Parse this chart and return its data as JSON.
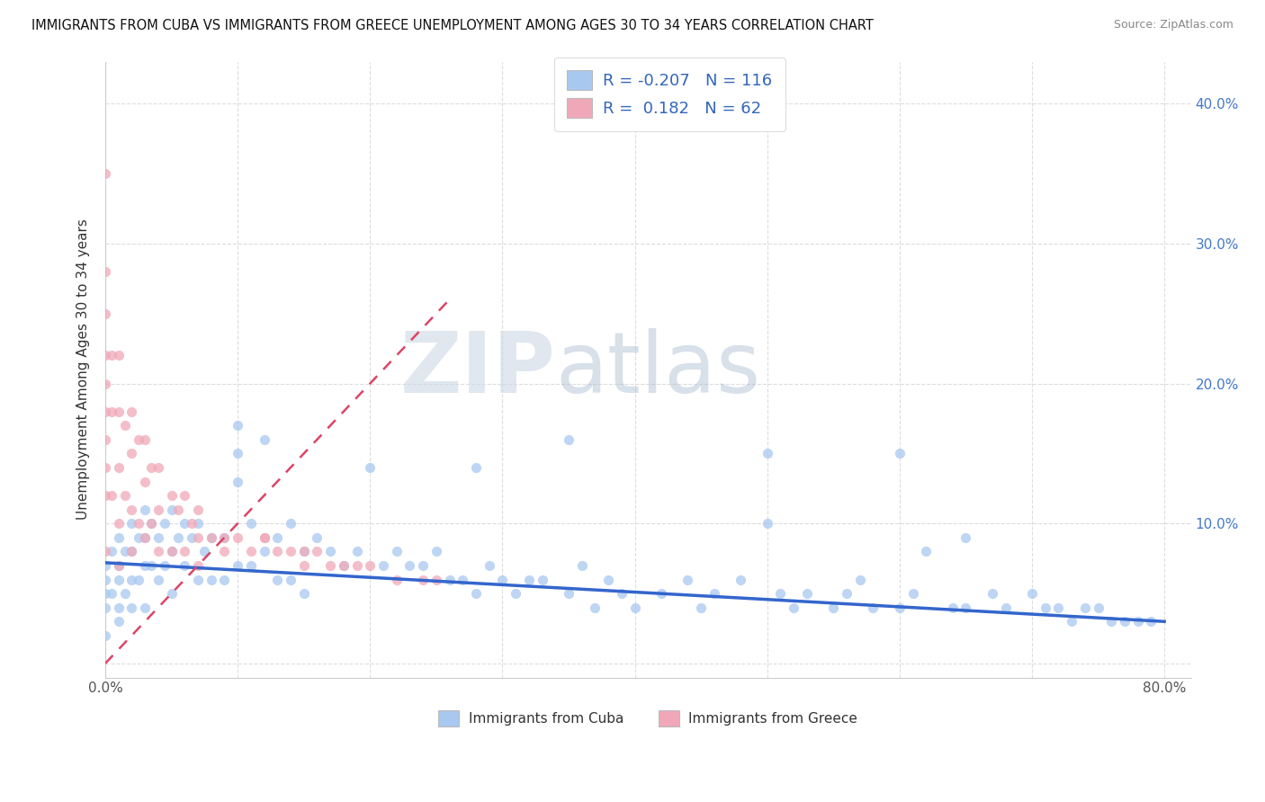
{
  "title": "IMMIGRANTS FROM CUBA VS IMMIGRANTS FROM GREECE UNEMPLOYMENT AMONG AGES 30 TO 34 YEARS CORRELATION CHART",
  "source": "Source: ZipAtlas.com",
  "ylabel": "Unemployment Among Ages 30 to 34 years",
  "xlim": [
    0.0,
    0.82
  ],
  "ylim": [
    -0.01,
    0.43
  ],
  "xticks": [
    0.0,
    0.1,
    0.2,
    0.3,
    0.4,
    0.5,
    0.6,
    0.7,
    0.8
  ],
  "xticklabels": [
    "0.0%",
    "",
    "",
    "",
    "",
    "",
    "",
    "",
    "80.0%"
  ],
  "yticks": [
    0.0,
    0.1,
    0.2,
    0.3,
    0.4
  ],
  "yticklabels": [
    "",
    "10.0%",
    "20.0%",
    "30.0%",
    "40.0%"
  ],
  "cuba_R": -0.207,
  "cuba_N": 116,
  "greece_R": 0.182,
  "greece_N": 62,
  "cuba_color": "#a8c8f0",
  "greece_color": "#f0a8b8",
  "cuba_line_color": "#3366cc",
  "greece_line_color": "#dd4466",
  "watermark_zip": "ZIP",
  "watermark_atlas": "atlas",
  "background_color": "#ffffff",
  "grid_color": "#dddddd",
  "cuba_scatter_x": [
    0.0,
    0.0,
    0.0,
    0.0,
    0.0,
    0.005,
    0.005,
    0.01,
    0.01,
    0.01,
    0.01,
    0.01,
    0.015,
    0.015,
    0.02,
    0.02,
    0.02,
    0.02,
    0.025,
    0.025,
    0.03,
    0.03,
    0.03,
    0.03,
    0.035,
    0.035,
    0.04,
    0.04,
    0.045,
    0.045,
    0.05,
    0.05,
    0.05,
    0.055,
    0.06,
    0.06,
    0.065,
    0.07,
    0.07,
    0.075,
    0.08,
    0.08,
    0.09,
    0.09,
    0.1,
    0.1,
    0.1,
    0.11,
    0.11,
    0.12,
    0.12,
    0.13,
    0.13,
    0.14,
    0.14,
    0.15,
    0.15,
    0.16,
    0.17,
    0.18,
    0.19,
    0.2,
    0.21,
    0.22,
    0.23,
    0.24,
    0.25,
    0.26,
    0.27,
    0.28,
    0.29,
    0.3,
    0.31,
    0.32,
    0.33,
    0.35,
    0.36,
    0.37,
    0.38,
    0.39,
    0.4,
    0.42,
    0.44,
    0.45,
    0.46,
    0.48,
    0.5,
    0.51,
    0.52,
    0.53,
    0.55,
    0.56,
    0.57,
    0.58,
    0.6,
    0.61,
    0.62,
    0.64,
    0.65,
    0.67,
    0.68,
    0.7,
    0.71,
    0.72,
    0.73,
    0.74,
    0.75,
    0.76,
    0.77,
    0.78,
    0.79,
    0.1,
    0.28,
    0.35,
    0.5,
    0.6,
    0.65
  ],
  "cuba_scatter_y": [
    0.07,
    0.06,
    0.05,
    0.04,
    0.02,
    0.08,
    0.05,
    0.09,
    0.07,
    0.06,
    0.04,
    0.03,
    0.08,
    0.05,
    0.1,
    0.08,
    0.06,
    0.04,
    0.09,
    0.06,
    0.11,
    0.09,
    0.07,
    0.04,
    0.1,
    0.07,
    0.09,
    0.06,
    0.1,
    0.07,
    0.11,
    0.08,
    0.05,
    0.09,
    0.1,
    0.07,
    0.09,
    0.1,
    0.06,
    0.08,
    0.09,
    0.06,
    0.09,
    0.06,
    0.17,
    0.13,
    0.07,
    0.1,
    0.07,
    0.16,
    0.08,
    0.09,
    0.06,
    0.1,
    0.06,
    0.08,
    0.05,
    0.09,
    0.08,
    0.07,
    0.08,
    0.14,
    0.07,
    0.08,
    0.07,
    0.07,
    0.08,
    0.06,
    0.06,
    0.05,
    0.07,
    0.06,
    0.05,
    0.06,
    0.06,
    0.05,
    0.07,
    0.04,
    0.06,
    0.05,
    0.04,
    0.05,
    0.06,
    0.04,
    0.05,
    0.06,
    0.1,
    0.05,
    0.04,
    0.05,
    0.04,
    0.05,
    0.06,
    0.04,
    0.04,
    0.05,
    0.08,
    0.04,
    0.04,
    0.05,
    0.04,
    0.05,
    0.04,
    0.04,
    0.03,
    0.04,
    0.04,
    0.03,
    0.03,
    0.03,
    0.03,
    0.15,
    0.14,
    0.16,
    0.15,
    0.15,
    0.09
  ],
  "greece_scatter_x": [
    0.0,
    0.0,
    0.0,
    0.0,
    0.0,
    0.0,
    0.0,
    0.0,
    0.0,
    0.0,
    0.005,
    0.005,
    0.005,
    0.01,
    0.01,
    0.01,
    0.01,
    0.01,
    0.015,
    0.015,
    0.02,
    0.02,
    0.02,
    0.02,
    0.025,
    0.025,
    0.03,
    0.03,
    0.03,
    0.035,
    0.035,
    0.04,
    0.04,
    0.04,
    0.05,
    0.05,
    0.055,
    0.06,
    0.06,
    0.065,
    0.07,
    0.07,
    0.08,
    0.09,
    0.1,
    0.11,
    0.12,
    0.13,
    0.14,
    0.15,
    0.16,
    0.17,
    0.18,
    0.19,
    0.2,
    0.22,
    0.24,
    0.25,
    0.07,
    0.09,
    0.12,
    0.15
  ],
  "greece_scatter_y": [
    0.35,
    0.28,
    0.25,
    0.22,
    0.2,
    0.18,
    0.16,
    0.14,
    0.12,
    0.08,
    0.22,
    0.18,
    0.12,
    0.22,
    0.18,
    0.14,
    0.1,
    0.07,
    0.17,
    0.12,
    0.18,
    0.15,
    0.11,
    0.08,
    0.16,
    0.1,
    0.16,
    0.13,
    0.09,
    0.14,
    0.1,
    0.14,
    0.11,
    0.08,
    0.12,
    0.08,
    0.11,
    0.12,
    0.08,
    0.1,
    0.11,
    0.07,
    0.09,
    0.09,
    0.09,
    0.08,
    0.09,
    0.08,
    0.08,
    0.07,
    0.08,
    0.07,
    0.07,
    0.07,
    0.07,
    0.06,
    0.06,
    0.06,
    0.09,
    0.08,
    0.09,
    0.08
  ],
  "cuba_line_x0": 0.0,
  "cuba_line_x1": 0.8,
  "cuba_line_y0": 0.072,
  "cuba_line_y1": 0.03,
  "greece_line_x0": 0.0,
  "greece_line_x1": 0.26,
  "greece_line_y0": 0.0,
  "greece_line_y1": 0.26
}
